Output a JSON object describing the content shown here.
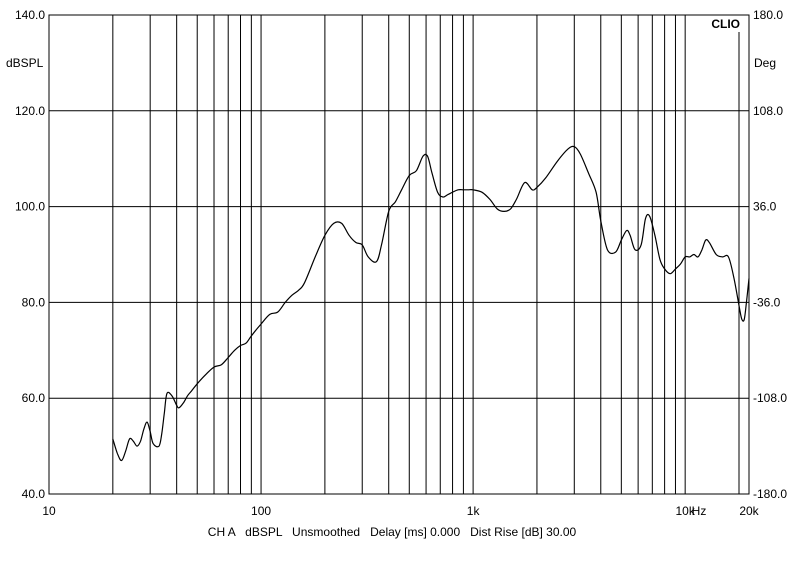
{
  "chart_data": {
    "type": "line",
    "brand": "CLIO",
    "ylabel_left": "dBSPL",
    "ylabel_right": "Deg",
    "x_unit_label": "Hz",
    "x_scale": "log",
    "xlim": [
      10,
      20000
    ],
    "ylim": [
      40,
      140
    ],
    "ylim_right": [
      -180,
      180
    ],
    "grid": true,
    "left_ticks": [
      {
        "value": 140,
        "label": "140.0"
      },
      {
        "value": 120,
        "label": "120.0"
      },
      {
        "value": 100,
        "label": "100.0"
      },
      {
        "value": 80,
        "label": "80.0"
      },
      {
        "value": 60,
        "label": "60.0"
      },
      {
        "value": 40,
        "label": "40.0"
      }
    ],
    "right_ticks": [
      {
        "value": 180,
        "label": "180.0"
      },
      {
        "value": 108,
        "label": "108.0"
      },
      {
        "value": 36,
        "label": "36.0"
      },
      {
        "value": -36,
        "label": "-36.0"
      },
      {
        "value": -108,
        "label": "-108.0"
      },
      {
        "value": -180,
        "label": "-180.0"
      }
    ],
    "x_tick_labels": [
      {
        "value": 10,
        "label": "10"
      },
      {
        "value": 100,
        "label": "100"
      },
      {
        "value": 1000,
        "label": "1k"
      },
      {
        "value": 10000,
        "label": "10k"
      },
      {
        "value": 20000,
        "label": "20k"
      }
    ],
    "x_gridlines": [
      20,
      30,
      40,
      50,
      60,
      70,
      80,
      90,
      100,
      200,
      300,
      400,
      500,
      600,
      700,
      800,
      900,
      1000,
      2000,
      3000,
      4000,
      5000,
      6000,
      7000,
      8000,
      9000,
      10000,
      20000
    ],
    "footer_text": "CH A   dBSPL   Unsmoothed   Delay [ms] 0.000   Dist Rise [dB] 30.00",
    "series": [
      {
        "color": "#000000",
        "x": [
          20,
          21,
          22,
          23,
          24,
          25,
          26,
          27,
          28,
          29,
          30,
          31,
          33,
          34,
          35,
          36,
          38,
          40,
          41,
          43,
          45,
          47,
          50,
          55,
          60,
          65,
          70,
          75,
          80,
          85,
          90,
          100,
          110,
          120,
          130,
          140,
          150,
          160,
          180,
          200,
          220,
          240,
          260,
          280,
          300,
          320,
          350,
          370,
          400,
          430,
          460,
          500,
          540,
          580,
          610,
          640,
          680,
          720,
          760,
          800,
          850,
          900,
          950,
          1000,
          1100,
          1200,
          1300,
          1400,
          1500,
          1600,
          1750,
          1900,
          2000,
          2200,
          2500,
          2800,
          3000,
          3200,
          3500,
          3800,
          4000,
          4300,
          4700,
          5000,
          5300,
          5500,
          5800,
          6200,
          6500,
          6800,
          7200,
          7600,
          8000,
          8500,
          9000,
          9500,
          10000,
          10500,
          11000,
          11500,
          12000,
          12500,
          13000,
          14000,
          15000,
          16000,
          17000,
          18000,
          18500,
          19000,
          19500,
          20000
        ],
        "y": [
          51.5,
          48.5,
          47,
          49,
          51.5,
          51,
          50,
          51,
          53.5,
          55,
          53,
          50.5,
          50,
          52.5,
          57,
          61,
          60.5,
          58.5,
          58,
          59,
          60.5,
          61.5,
          63,
          65,
          66.5,
          67,
          68.5,
          70,
          71,
          71.5,
          73,
          75.5,
          77.5,
          78,
          80,
          81.5,
          82.5,
          84,
          89.5,
          94,
          96.5,
          96.5,
          94,
          92.5,
          92,
          89.5,
          88.5,
          92,
          99,
          101,
          103.5,
          106.5,
          107.5,
          110.5,
          110.5,
          107,
          103,
          102,
          102.5,
          103,
          103.5,
          103.5,
          103.5,
          103.5,
          103,
          101.5,
          99.5,
          99,
          99.5,
          101.5,
          105,
          103.5,
          104,
          106,
          109.5,
          112,
          112.5,
          111,
          107,
          103,
          97,
          91,
          90.5,
          93,
          95,
          94,
          91,
          92,
          97.5,
          98,
          94,
          89,
          87,
          86,
          87,
          88,
          89.5,
          89.5,
          90,
          89.5,
          91,
          93,
          92.5,
          90,
          89.5,
          89.5,
          85,
          79,
          76.5,
          76.5,
          80.5,
          85
        ]
      }
    ]
  }
}
